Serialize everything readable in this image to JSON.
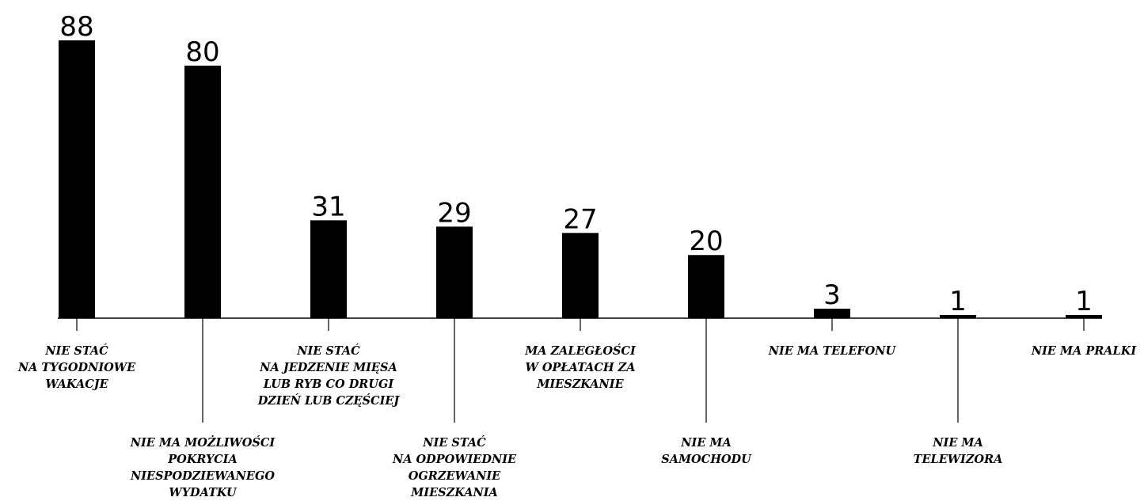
{
  "chart_data": {
    "type": "bar",
    "categories": [
      [
        "NIE STAĆ",
        "NA TYGODNIOWE",
        "WAKACJE"
      ],
      [
        "NIE MA MOŻLIWOŚCI",
        "POKRYCIA",
        "NIESPODZIEWANEGO",
        "WYDATKU"
      ],
      [
        "NIE STAĆ",
        "NA JEDZENIE MIĘSA",
        "LUB RYB CO DRUGI",
        "DZIEŃ LUB CZĘŚCIEJ"
      ],
      [
        "NIE STAĆ",
        "NA ODPOWIEDNIE",
        "OGRZEWANIE",
        "MIESZKANIA"
      ],
      [
        "MA ZALEGŁOŚCI",
        "W OPŁATACH ZA",
        "MIESZKANIE"
      ],
      [
        "NIE MA",
        "SAMOCHODU"
      ],
      [
        "NIE MA TELEFONU"
      ],
      [
        "NIE MA",
        "TELEWIZORA"
      ],
      [
        "NIE MA PRALKI"
      ]
    ],
    "values": [
      88,
      80,
      31,
      29,
      27,
      20,
      3,
      1,
      1
    ],
    "data_labels": [
      "88",
      "80",
      "31",
      "29",
      "27",
      "20",
      "3",
      "1",
      "1"
    ],
    "label_positions": [
      "upper",
      "lower",
      "upper",
      "lower",
      "upper",
      "lower",
      "upper",
      "lower",
      "upper"
    ],
    "ylim": [
      0,
      88
    ],
    "grid": false,
    "legend": "none",
    "bar_color": "#000000"
  }
}
